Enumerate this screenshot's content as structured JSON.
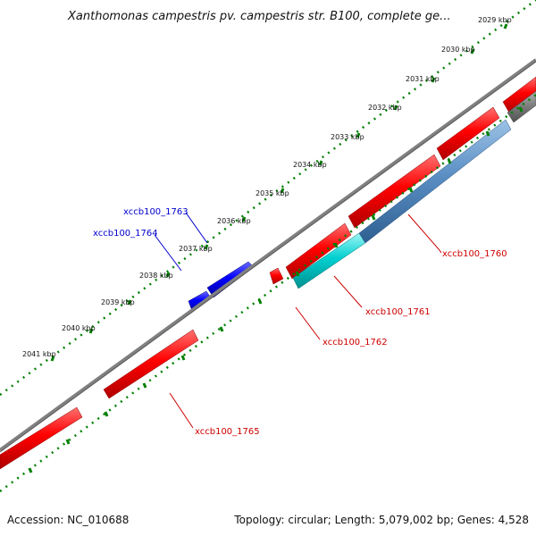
{
  "title": "Xanthomonas campestris pv. campestris str. B100, complete ge...",
  "footer": {
    "accession": "Accession: NC_010688",
    "summary": "Topology: circular; Length: 5,079,002 bp; Genes: 4,528"
  },
  "ticks": [
    "2029 kbp",
    "2030 kbp",
    "2031 kbp",
    "2032 kbp",
    "2033 kbp",
    "2034 kbp",
    "2035 kbp",
    "2036 kbp",
    "2037 kbp",
    "2038 kbp",
    "2039 kbp",
    "2040 kbp",
    "2041 kbp"
  ],
  "genes": [
    {
      "id": "xccb100_1760",
      "label": "xccb100_1760",
      "color": "#cc0000"
    },
    {
      "id": "xccb100_1761",
      "label": "xccb100_1761",
      "color": "#cc0000"
    },
    {
      "id": "xccb100_1762",
      "label": "xccb100_1762",
      "color": "#cc0000"
    },
    {
      "id": "xccb100_1763",
      "label": "xccb100_1763",
      "color": "#0000cc"
    },
    {
      "id": "xccb100_1764",
      "label": "xccb100_1764",
      "color": "#0000cc"
    },
    {
      "id": "xccb100_1765",
      "label": "xccb100_1765",
      "color": "#cc0000"
    }
  ],
  "colors": {
    "forward_cds": "#ff0000",
    "reverse_cds": "#0000ff",
    "backbone": "#808080",
    "tick_marks": "#008000",
    "cyan_feature": "#00cccc",
    "blue_feature": "#4a7fb5"
  }
}
